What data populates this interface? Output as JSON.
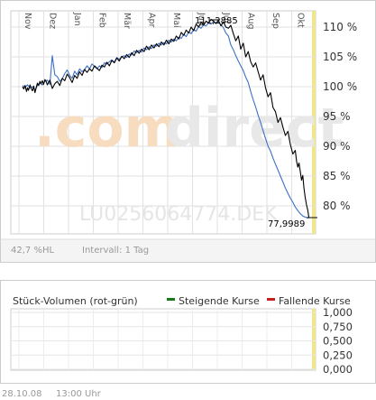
{
  "chart_data": [
    {
      "type": "line",
      "isin_watermark": "LU0256064774.DEK",
      "brand_watermark": {
        "part1": ".com",
        "part2": "direct"
      },
      "x_months": [
        "Nov",
        "Dez",
        "Jan",
        "Feb",
        "Mär",
        "Apr",
        "Mai",
        "Jun",
        "Jul",
        "Aug",
        "Sep",
        "Okt"
      ],
      "y_ticks": [
        "110 %",
        "105 %",
        "100 %",
        "95 %",
        "90 %",
        "85 %",
        "80 %"
      ],
      "ylim": [
        77,
        112
      ],
      "annotations": {
        "high": "111,2885",
        "low": "77,9989"
      },
      "volatility_label": "42,7 %HL",
      "interval_label": "Intervall: 1 Tag",
      "colors": {
        "series_black": "#000000",
        "series_blue": "#3b6fc6",
        "grid": "#d8d8d8",
        "highlight": "#f0e68c",
        "watermark_orange": "#f7dcc0",
        "watermark_grey": "#e8e8e8"
      },
      "series": [
        {
          "color": "#000000",
          "x": [
            0.0,
            0.05,
            0.1,
            0.16,
            0.2,
            0.24,
            0.3,
            0.35,
            0.4,
            0.45,
            0.5,
            0.55,
            0.6,
            0.65,
            0.7,
            0.75,
            0.8,
            0.85,
            0.9,
            0.95,
            1.0,
            1.1,
            1.2,
            1.3,
            1.4,
            1.5,
            1.6,
            1.7,
            1.8,
            1.9,
            2.0,
            2.1,
            2.2,
            2.3,
            2.4,
            2.5,
            2.6,
            2.7,
            2.8,
            2.9,
            3.0,
            3.1,
            3.2,
            3.3,
            3.4,
            3.5,
            3.6,
            3.7,
            3.8,
            3.9,
            4.0,
            4.1,
            4.2,
            4.3,
            4.4,
            4.5,
            4.6,
            4.7,
            4.8,
            4.9,
            5.0,
            5.1,
            5.2,
            5.3,
            5.4,
            5.5,
            5.6,
            5.7,
            5.8,
            5.9,
            6.0,
            6.1,
            6.2,
            6.3,
            6.4,
            6.5,
            6.6,
            6.7,
            6.8,
            6.9,
            7.0,
            7.1,
            7.2,
            7.3,
            7.4,
            7.5,
            7.6,
            7.7,
            7.8,
            7.9,
            8.0,
            8.1,
            8.2,
            8.3,
            8.4,
            8.5,
            8.6,
            8.7,
            8.8,
            8.9,
            9.0,
            9.1,
            9.2,
            9.3,
            9.4,
            9.5,
            9.6,
            9.7,
            9.8,
            9.9,
            10.0,
            10.1,
            10.2,
            10.3,
            10.4,
            10.5,
            10.6,
            10.7,
            10.8,
            10.9,
            11.0,
            11.05,
            11.1,
            11.15,
            11.2,
            11.25,
            11.3,
            11.35,
            11.4,
            11.45,
            11.5,
            11.55
          ],
          "values": [
            100.0,
            99.6,
            100.2,
            99.2,
            99.8,
            99.4,
            100.3,
            99.7,
            99.3,
            100.1,
            99.0,
            99.8,
            100.6,
            100.2,
            100.9,
            100.5,
            101.0,
            100.4,
            101.2,
            100.9,
            100.3,
            101.1,
            99.7,
            100.5,
            100.9,
            100.2,
            101.4,
            101.0,
            102.1,
            101.5,
            100.7,
            101.9,
            101.4,
            102.5,
            101.9,
            102.9,
            102.4,
            103.0,
            102.6,
            103.5,
            103.1,
            102.7,
            103.6,
            103.3,
            104.1,
            103.5,
            104.4,
            104.0,
            104.8,
            104.3,
            105.1,
            104.7,
            105.4,
            104.9,
            105.7,
            105.2,
            106.1,
            105.6,
            106.3,
            105.9,
            106.8,
            106.2,
            107.0,
            106.5,
            107.2,
            106.7,
            107.5,
            107.0,
            107.8,
            107.2,
            108.0,
            107.6,
            108.5,
            108.0,
            109.1,
            108.6,
            109.5,
            109.0,
            110.0,
            109.4,
            110.5,
            110.0,
            110.8,
            110.3,
            111.0,
            110.7,
            111.29,
            111.0,
            110.6,
            111.1,
            110.2,
            110.9,
            110.0,
            109.8,
            110.3,
            108.9,
            107.7,
            108.5,
            106.3,
            107.3,
            105.0,
            105.9,
            104.2,
            103.3,
            104.0,
            102.5,
            101.1,
            102.0,
            99.8,
            98.3,
            99.0,
            96.5,
            95.8,
            94.0,
            94.8,
            93.2,
            91.8,
            92.5,
            90.3,
            88.7,
            89.3,
            87.5,
            86.5,
            87.2,
            85.8,
            84.3,
            85.1,
            83.0,
            81.4,
            80.2,
            79.3,
            78.0
          ]
        },
        {
          "color": "#3b6fc6",
          "x": [
            0.0,
            0.1,
            0.2,
            0.3,
            0.4,
            0.5,
            0.6,
            0.7,
            0.8,
            0.9,
            1.0,
            1.1,
            1.2,
            1.3,
            1.4,
            1.5,
            1.6,
            1.7,
            1.8,
            1.9,
            2.0,
            2.1,
            2.2,
            2.3,
            2.4,
            2.5,
            2.6,
            2.7,
            2.8,
            2.9,
            3.0,
            3.1,
            3.2,
            3.3,
            3.4,
            3.5,
            3.6,
            3.7,
            3.8,
            3.9,
            4.0,
            4.1,
            4.2,
            4.3,
            4.4,
            4.5,
            4.6,
            4.7,
            4.8,
            4.9,
            5.0,
            5.1,
            5.2,
            5.3,
            5.4,
            5.5,
            5.6,
            5.7,
            5.8,
            5.9,
            6.0,
            6.1,
            6.2,
            6.3,
            6.4,
            6.5,
            6.6,
            6.7,
            6.8,
            6.9,
            7.0,
            7.1,
            7.2,
            7.3,
            7.4,
            7.5,
            7.6,
            7.7,
            7.8,
            7.9,
            8.0,
            8.1,
            8.2,
            8.3,
            8.4,
            8.5,
            8.6,
            8.7,
            8.8,
            8.9,
            9.0,
            9.1,
            9.2,
            9.3,
            9.4,
            9.5,
            9.6,
            9.7,
            9.8,
            9.9,
            10.0,
            10.1,
            10.2,
            10.3,
            10.4,
            10.5,
            10.6,
            10.7,
            10.8,
            10.9,
            11.0,
            11.1,
            11.2,
            11.3,
            11.4,
            11.5,
            11.55
          ],
          "values": [
            100.2,
            99.9,
            100.3,
            99.8,
            100.0,
            99.4,
            100.2,
            100.6,
            100.3,
            100.9,
            101.1,
            100.4,
            105.2,
            102.0,
            101.7,
            100.9,
            101.3,
            102.2,
            102.8,
            101.9,
            101.4,
            102.6,
            102.0,
            103.0,
            102.5,
            102.9,
            103.5,
            103.0,
            103.8,
            103.4,
            103.0,
            103.5,
            103.2,
            104.0,
            103.8,
            104.2,
            104.5,
            104.1,
            104.9,
            104.6,
            105.0,
            105.2,
            104.9,
            105.5,
            105.3,
            106.0,
            105.7,
            106.1,
            105.8,
            106.5,
            106.2,
            106.7,
            106.4,
            107.0,
            106.8,
            107.3,
            107.0,
            107.4,
            107.2,
            107.8,
            107.5,
            108.0,
            107.7,
            108.3,
            108.1,
            108.8,
            108.4,
            109.2,
            108.9,
            109.6,
            109.3,
            110.1,
            109.8,
            110.4,
            110.2,
            110.7,
            110.5,
            110.9,
            110.6,
            110.8,
            110.4,
            109.9,
            109.0,
            108.5,
            107.0,
            106.2,
            105.2,
            104.3,
            103.5,
            102.7,
            101.6,
            100.7,
            99.2,
            97.8,
            96.6,
            95.2,
            94.0,
            92.6,
            91.3,
            90.0,
            89.2,
            88.0,
            87.0,
            86.0,
            85.0,
            84.0,
            83.0,
            82.1,
            81.3,
            80.6,
            79.8,
            79.2,
            78.7,
            78.3,
            78.1,
            78.0,
            78.0
          ]
        }
      ]
    },
    {
      "type": "bar",
      "title": "Stück-Volumen (rot-grün)",
      "legend": [
        {
          "label": "Steigende Kurse",
          "color": "#1a7a1a"
        },
        {
          "label": "Fallende Kurse",
          "color": "#c81e1e"
        }
      ],
      "y_ticks": [
        "1,000",
        "0,750",
        "0,500",
        "0,250",
        "0,000"
      ],
      "ylim": [
        0,
        1
      ],
      "values": []
    }
  ],
  "footer": {
    "timestamp": "28.10.08",
    "time": "13:00 Uhr"
  }
}
